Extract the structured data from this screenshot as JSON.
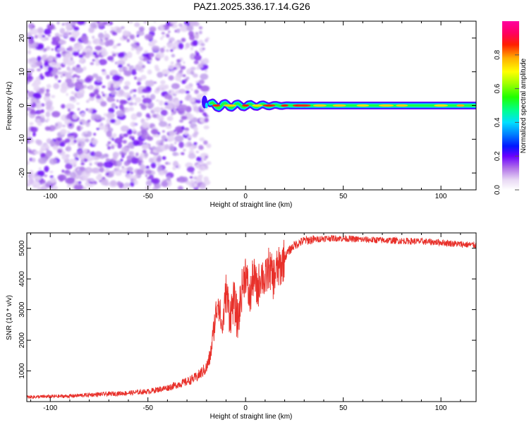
{
  "title": "PAZ1.2025.336.17.14.G26",
  "chart_data": [
    {
      "type": "heatmap",
      "xlabel": "Height of straight line (km)",
      "ylabel": "Frequency (Hz)",
      "xlim": [
        -112,
        118
      ],
      "ylim": [
        -25,
        25
      ],
      "xticks": [
        -100,
        -50,
        0,
        50,
        100
      ],
      "yticks": [
        20,
        10,
        0,
        -10,
        -20
      ],
      "noise_region_x": [
        -112,
        -20
      ],
      "signal_band_center_hz": 0,
      "colorbar": {
        "label": "Normalized spectral amplitude",
        "range": [
          0,
          1
        ],
        "ticks": [
          0.0,
          0.2,
          0.4,
          0.6,
          0.8
        ]
      }
    },
    {
      "type": "line",
      "xlabel": "Height of straight line (km)",
      "ylabel": "SNR (10 * v/v)",
      "xlim": [
        -112,
        118
      ],
      "ylim": [
        0,
        5500
      ],
      "xticks": [
        -100,
        -50,
        0,
        50,
        100
      ],
      "yticks": [
        1000,
        2000,
        3000,
        4000,
        5000
      ],
      "color": "#e8302a",
      "series": [
        {
          "name": "SNR",
          "x": [
            -112,
            -90,
            -80,
            -70,
            -60,
            -50,
            -40,
            -30,
            -25,
            -20,
            -18,
            -16,
            -14,
            -12,
            -10,
            -8,
            -6,
            -4,
            -2,
            0,
            2,
            4,
            6,
            8,
            10,
            12,
            14,
            16,
            18,
            20,
            22,
            25,
            30,
            35,
            40,
            45,
            50,
            55,
            60,
            70,
            80,
            90,
            100,
            110,
            118
          ],
          "values": [
            150,
            180,
            220,
            250,
            280,
            330,
            450,
            650,
            800,
            1100,
            1500,
            2500,
            3400,
            2300,
            3600,
            2800,
            3300,
            2600,
            3600,
            4300,
            3300,
            4100,
            3600,
            4200,
            3900,
            4400,
            4000,
            4300,
            4400,
            4700,
            4900,
            5100,
            5250,
            5280,
            5320,
            5330,
            5320,
            5300,
            5280,
            5260,
            5240,
            5220,
            5190,
            5130,
            5100
          ]
        }
      ]
    }
  ]
}
